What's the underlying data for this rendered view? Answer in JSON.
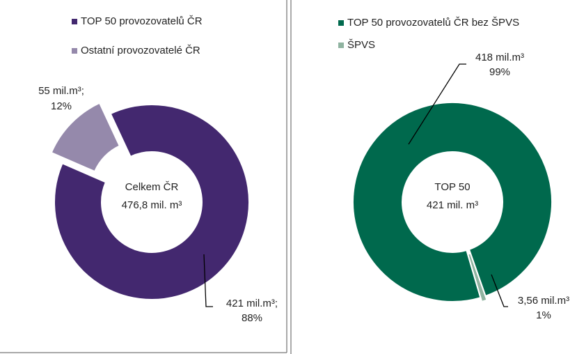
{
  "chart_data": [
    {
      "type": "donut",
      "categories": [
        "TOP 50 provozovatelů ČR",
        "Ostatní provozovatelé ČR"
      ],
      "values": [
        421,
        55
      ],
      "value_labels": [
        "421 mil.m³;",
        "55 mil.m³;"
      ],
      "percent_labels": [
        "88%",
        "12%"
      ],
      "colors": [
        "#43286f",
        "#9589ab"
      ],
      "center_text": [
        "Celkem ČR",
        "476,8 mil. m³"
      ]
    },
    {
      "type": "donut",
      "categories": [
        "TOP 50 provozovatelů ČR bez ŠPVS",
        "ŠPVS"
      ],
      "values": [
        418,
        3.56
      ],
      "value_labels": [
        "418 mil.m³",
        "3,56 mil.m³"
      ],
      "percent_labels": [
        "99%",
        "1%"
      ],
      "colors": [
        "#00694d",
        "#8fb3a0"
      ],
      "center_text": [
        "TOP 50",
        "421 mil. m³"
      ]
    }
  ]
}
